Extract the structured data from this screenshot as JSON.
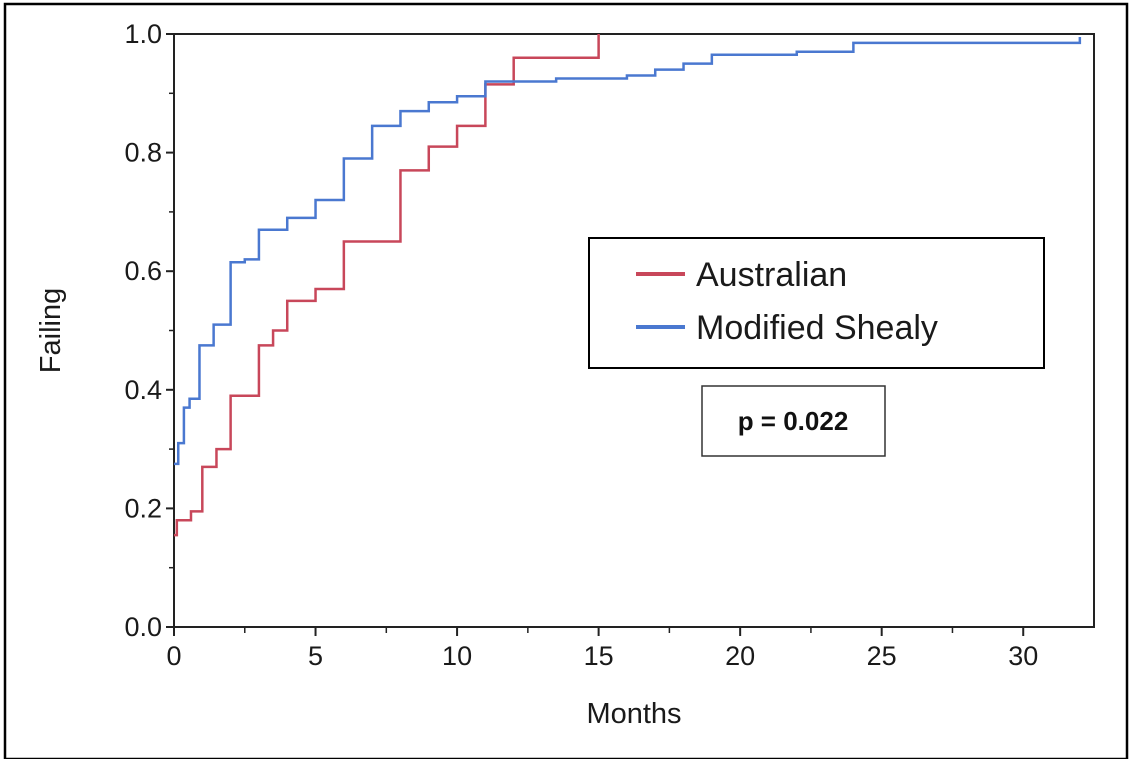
{
  "chart_data": {
    "type": "line",
    "step": true,
    "xlabel": "Months",
    "ylabel": "Failing",
    "xlim": [
      0,
      32.5
    ],
    "ylim": [
      0,
      1.0
    ],
    "xticks": [
      0,
      5,
      10,
      15,
      20,
      25,
      30
    ],
    "xtick_labels": [
      "0",
      "5",
      "10",
      "15",
      "20",
      "25",
      "30"
    ],
    "yticks": [
      0.0,
      0.2,
      0.4,
      0.6,
      0.8,
      1.0
    ],
    "ytick_labels": [
      "0.0",
      "0.2",
      "0.4",
      "0.6",
      "0.8",
      "1.0"
    ],
    "grid": false,
    "legend_position": "center-right",
    "series": [
      {
        "name": "Australian",
        "color": "#c8475a",
        "x": [
          0,
          0.1,
          0.6,
          1.0,
          1.5,
          2.0,
          3.0,
          3.5,
          4.0,
          5.0,
          6.0,
          8.0,
          9.0,
          10.0,
          11.0,
          12.0,
          15.0
        ],
        "y": [
          0.155,
          0.18,
          0.195,
          0.27,
          0.3,
          0.39,
          0.475,
          0.5,
          0.55,
          0.57,
          0.65,
          0.77,
          0.81,
          0.845,
          0.915,
          0.96,
          1.0
        ]
      },
      {
        "name": "Modified Shealy",
        "color": "#4a78d0",
        "x": [
          0,
          0.15,
          0.35,
          0.55,
          0.9,
          1.4,
          2.0,
          2.5,
          3.0,
          4.0,
          5.0,
          6.0,
          7.0,
          8.0,
          9.0,
          10.0,
          11.0,
          13.5,
          16.0,
          17.0,
          18.0,
          19.0,
          22.0,
          24.0,
          32.0
        ],
        "y": [
          0.275,
          0.31,
          0.37,
          0.385,
          0.475,
          0.51,
          0.615,
          0.62,
          0.67,
          0.69,
          0.72,
          0.79,
          0.845,
          0.87,
          0.885,
          0.895,
          0.92,
          0.925,
          0.93,
          0.94,
          0.95,
          0.965,
          0.97,
          0.985,
          0.995
        ]
      }
    ],
    "annotation": "p = 0.022"
  }
}
